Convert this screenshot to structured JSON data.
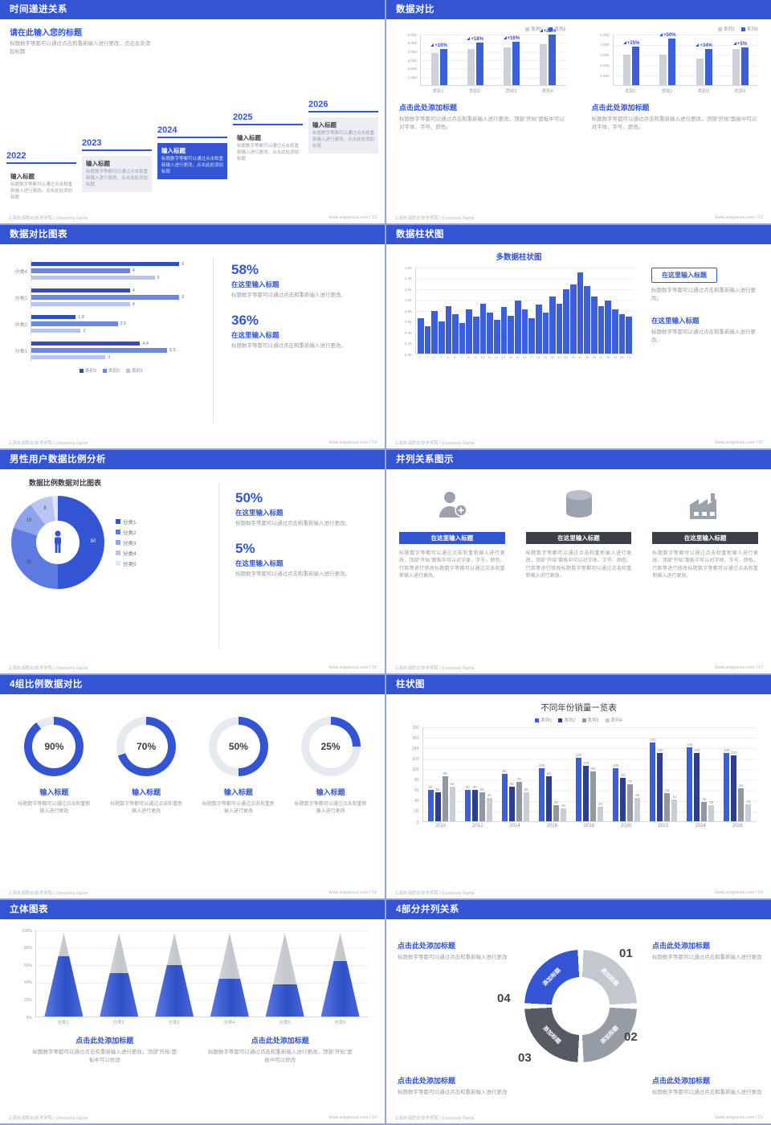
{
  "theme": {
    "accent": "#3355d4",
    "dark": "#3a3f48",
    "gray_text": "#979da6"
  },
  "footer": {
    "left": "上海东海职业技术学院 | University Name"
  },
  "slides": {
    "timeline": {
      "title": "时间递进关系",
      "footer_right": "www.aotgenius.com | 12",
      "intro_title": "请在此输入您的标题",
      "intro_body": "标题数字等都可以通过点击和重新输入进行更改，点击此处添加标题",
      "steps": [
        {
          "year": "2022",
          "label": "输入标题",
          "body": "标题数字等都可以通过点击和重新输入进行更改，点击此处添加标题"
        },
        {
          "year": "2023",
          "label": "输入标题",
          "body": "标题数字等都可以通过点击和重新输入进行更改，点击此处添加标题"
        },
        {
          "year": "2024",
          "label": "输入标题",
          "body": "标题数字等都可以通过点击和重新输入进行更改，点击此处添加标题"
        },
        {
          "year": "2025",
          "label": "输入标题",
          "body": "标题数字等都可以通过点击和重新输入进行更改，点击此处添加标题"
        },
        {
          "year": "2026",
          "label": "输入标题",
          "body": "标题数字等都可以通过点击和重新输入进行更改，点击此处添加标题"
        }
      ]
    },
    "compare": {
      "title": "数据对比",
      "footer_right": "www.aotgenius.com | 13",
      "charts": [
        {
          "caption": "点击此处添加标题",
          "body": "标题数字等都可以通过点击和重新输入进行更改，顶部“开始”面板中可以对字体、字号、颜色。",
          "chart_data": {
            "type": "bar",
            "categories": [
              "类别1",
              "类别2",
              "类别3",
              "类别4"
            ],
            "series": [
              {
                "name": "系列1",
                "color": "#ccd1da",
                "values": [
                  3800,
                  4200,
                  4400,
                  4800
                ]
              },
              {
                "name": "系列2",
                "color": "#3b5fd9",
                "values": [
                  4200,
                  5000,
                  5100,
                  5900
                ]
              }
            ],
            "labels": [
              "+10%",
              "+18%",
              "+16%",
              "+22%"
            ],
            "ymax": 6000,
            "yticks": [
              "6,000",
              "5,000",
              "4,000",
              "3,000",
              "2,000",
              "1,000"
            ]
          }
        },
        {
          "caption": "点击此处添加标题",
          "body": "标题数字等都可以通过点击和重新输入进行更改，顶部“开始”面板中可以对字体、字号、颜色。",
          "chart_data": {
            "type": "bar",
            "categories": [
              "类别1",
              "类别2",
              "类别3",
              "类别4"
            ],
            "series": [
              {
                "name": "系列1",
                "color": "#ccd1da",
                "values": [
                  3000,
                  3000,
                  2600,
                  3500
                ]
              },
              {
                "name": "系列2",
                "color": "#3b5fd9",
                "values": [
                  3750,
                  4500,
                  3500,
                  3700
                ]
              }
            ],
            "labels": [
              "+25%",
              "+50%",
              "+34%",
              "+5%"
            ],
            "ymax": 5000,
            "yticks": [
              "5,000",
              "4,000",
              "3,000",
              "2,000",
              "1,000"
            ]
          }
        }
      ]
    },
    "hbar": {
      "title": "数据对比图表",
      "footer_right": "www.aotgenius.com | 14",
      "chart_data": {
        "type": "bar-horizontal",
        "xmax": 7,
        "series_legend": [
          {
            "name": "类别3",
            "color": "#2f4ec2"
          },
          {
            "name": "类别2",
            "color": "#6b86e4"
          },
          {
            "name": "类别1",
            "color": "#b7c3f1"
          }
        ],
        "groups": [
          {
            "category": "分类4",
            "values": [
              6,
              4,
              5
            ]
          },
          {
            "category": "分类3",
            "values": [
              4,
              6,
              4
            ]
          },
          {
            "category": "分类2",
            "values": [
              1.8,
              3.5,
              2
            ]
          },
          {
            "category": "分类1",
            "values": [
              4.4,
              5.5,
              3
            ]
          }
        ]
      },
      "stats": [
        {
          "pct": "58%",
          "heading": "在这里输入标题",
          "body": "标题数字等都可以通过点击和重新输入进行更改。"
        },
        {
          "pct": "36%",
          "heading": "在这里输入标题",
          "body": "标题数字等都可以通过点击和重新输入进行更改。"
        }
      ]
    },
    "columns": {
      "title": "数据柱状图",
      "footer_right": "www.aotgenius.com | 15",
      "chart_title": "多数据柱状图",
      "chart_data": {
        "type": "bar",
        "x": [
          "1",
          "2",
          "3",
          "4",
          "5",
          "6",
          "7",
          "8",
          "9",
          "10",
          "11",
          "12",
          "13",
          "14",
          "15",
          "16",
          "17",
          "18",
          "19",
          "20",
          "21",
          "22",
          "23",
          "24",
          "25",
          "26",
          "27",
          "28",
          "29",
          "30",
          "31"
        ],
        "values": [
          650,
          500,
          780,
          600,
          880,
          720,
          560,
          820,
          680,
          920,
          760,
          620,
          860,
          700,
          980,
          820,
          660,
          900,
          760,
          1060,
          920,
          1180,
          1280,
          1500,
          1240,
          1060,
          880,
          980,
          820,
          720,
          680
        ],
        "ymax": 1600,
        "yticks": [
          "1.6K",
          "1.4K",
          "1.2K",
          "1.0K",
          "0.8K",
          "0.6K",
          "0.4K",
          "0.2K",
          "0.0K"
        ],
        "bar_color": "#3b5fd9"
      },
      "blocks": [
        {
          "heading": "在这里输入标题",
          "body": "标题数字等都可以通过点击和重新输入进行更改。"
        },
        {
          "heading": "在这里输入标题",
          "body": "标题数字等都可以通过点击和重新输入进行更改。"
        }
      ]
    },
    "donut": {
      "title": "男性用户数据比例分析",
      "footer_right": "www.aotgenius.com | 16",
      "chart_title": "数据比例数据对比图表",
      "chart_data": {
        "type": "pie",
        "labels": [
          "分类1",
          "分类2",
          "分类3",
          "分类4",
          "分类5"
        ],
        "values": [
          50,
          30,
          10,
          8,
          2
        ],
        "value_labels": [
          "50",
          "30",
          "10",
          "8",
          ""
        ],
        "colors": [
          "#3355d4",
          "#5d7ae0",
          "#8fa3ec",
          "#b9c6f3",
          "#dfe5fa"
        ]
      },
      "stats": [
        {
          "pct": "50%",
          "heading": "在这里输入标题",
          "body": "标题数字等都可以通过点击和重新输入进行更改。"
        },
        {
          "pct": "5%",
          "heading": "在这里输入标题",
          "body": "标题数字等都可以通过点击和重新输入进行更改。"
        }
      ]
    },
    "parallel": {
      "title": "并列关系图示",
      "footer_right": "www.aotgenius.com | 17",
      "items": [
        {
          "icon": "person-plus-icon",
          "button": "在这里输入标题",
          "body": "标题数字等都可以通过点击和重新输入进行更改，顶部“开始”面板中可以对字体、字号、颜色、行距等进行修改标题数字等都可以通过点击和重新输入进行更改。"
        },
        {
          "icon": "database-icon",
          "button": "在这里输入标题",
          "body": "标题数字等都可以通过点击和重新输入进行更改，顶部“开始”面板中可以对字体、字号、颜色、行距等进行修改标题数字等都可以通过点击和重新输入进行更改。"
        },
        {
          "icon": "building-icon",
          "button": "在这里输入标题",
          "body": "标题数字等都可以通过点击和重新输入进行更改，顶部“开始”面板中可以对字体、字号、颜色、行距等进行修改标题数字等都可以通过点击和重新输入进行更改。"
        }
      ]
    },
    "rings": {
      "title": "4组比例数据对比",
      "footer_right": "www.aotgenius.com | 18",
      "items": [
        {
          "pct": 90,
          "pct_label": "90%",
          "heading": "输入标题",
          "body": "标题数字等都可以通过点击和重新输入进行更改"
        },
        {
          "pct": 70,
          "pct_label": "70%",
          "heading": "输入标题",
          "body": "标题数字等都可以通过点击和重新输入进行更改"
        },
        {
          "pct": 50,
          "pct_label": "50%",
          "heading": "输入标题",
          "body": "标题数字等都可以通过点击和重新输入进行更改"
        },
        {
          "pct": 25,
          "pct_label": "25%",
          "heading": "输入标题",
          "body": "标题数字等都可以通过点击和重新输入进行更改"
        }
      ]
    },
    "grouped": {
      "title": "柱状图",
      "footer_right": "www.aotgenius.com | 19",
      "chart_data": {
        "type": "bar",
        "chart_title": "不同年份销量一览表",
        "categories": [
          "2010",
          "2012",
          "2014",
          "2016",
          "2018",
          "2020",
          "2022",
          "2024",
          "2026"
        ],
        "series": [
          {
            "name": "系列1",
            "color": "#3b5fd9",
            "values": [
              60,
              60,
              90,
              100,
              120,
              100,
              150,
              140,
              130
            ]
          },
          {
            "name": "系列2",
            "color": "#2c3f8c",
            "values": [
              55,
              60,
              65,
              85,
              105,
              83,
              130,
              130,
              125
            ]
          },
          {
            "name": "系列3",
            "color": "#9298a2",
            "values": [
              85,
              55,
              75,
              30,
              95,
              70,
              53,
              36,
              62
            ]
          },
          {
            "name": "系列4",
            "color": "#c9cdd4",
            "values": [
              65,
              45,
              55,
              25,
              28,
              45,
              42,
              30,
              32
            ]
          }
        ],
        "ymax": 180,
        "yticks": [
          "180",
          "160",
          "140",
          "120",
          "100",
          "80",
          "60",
          "40",
          "20",
          "0"
        ]
      }
    },
    "cones": {
      "title": "立体图表",
      "footer_right": "www.aotgenius.com | 20",
      "chart_data": {
        "type": "cone",
        "categories": [
          "分类1",
          "分类2",
          "分类3",
          "分类4",
          "分类5",
          "分类6"
        ],
        "values_pct": [
          72,
          52,
          62,
          45,
          38,
          66
        ],
        "yticks": [
          "100%",
          "80%",
          "60%",
          "40%",
          "20%",
          "0%"
        ]
      },
      "blocks": [
        {
          "heading": "点击此处添加标题",
          "body": "标题数字等都可以通过点击和重新输入进行更改，顶部“开始”面板中可以修改"
        },
        {
          "heading": "点击此处添加标题",
          "body": "标题数字等都可以通过点击和重新输入进行更改，顶部“开始”面板中可以修改"
        }
      ]
    },
    "circle4": {
      "title": "4部分并列关系",
      "footer_right": "www.aotgenius.com | 21",
      "segments": [
        {
          "num": "01",
          "label": "添加标题",
          "color": "#c3c7ce"
        },
        {
          "num": "02",
          "label": "添加标题",
          "color": "#969ca6"
        },
        {
          "num": "03",
          "label": "添加标题",
          "color": "#555a63"
        },
        {
          "num": "04",
          "label": "添加标题",
          "color": "#3355d4"
        }
      ],
      "blocks": [
        {
          "heading": "点击此处添加标题",
          "body": "标题数字等都可以通过点击和重新输入进行更改"
        },
        {
          "heading": "点击此处添加标题",
          "body": "标题数字等都可以通过点击和重新输入进行更改"
        },
        {
          "heading": "点击此处添加标题",
          "body": "标题数字等都可以通过点击和重新输入进行更改"
        },
        {
          "heading": "点击此处添加标题",
          "body": "标题数字等都可以通过点击和重新输入进行更改"
        }
      ]
    }
  }
}
